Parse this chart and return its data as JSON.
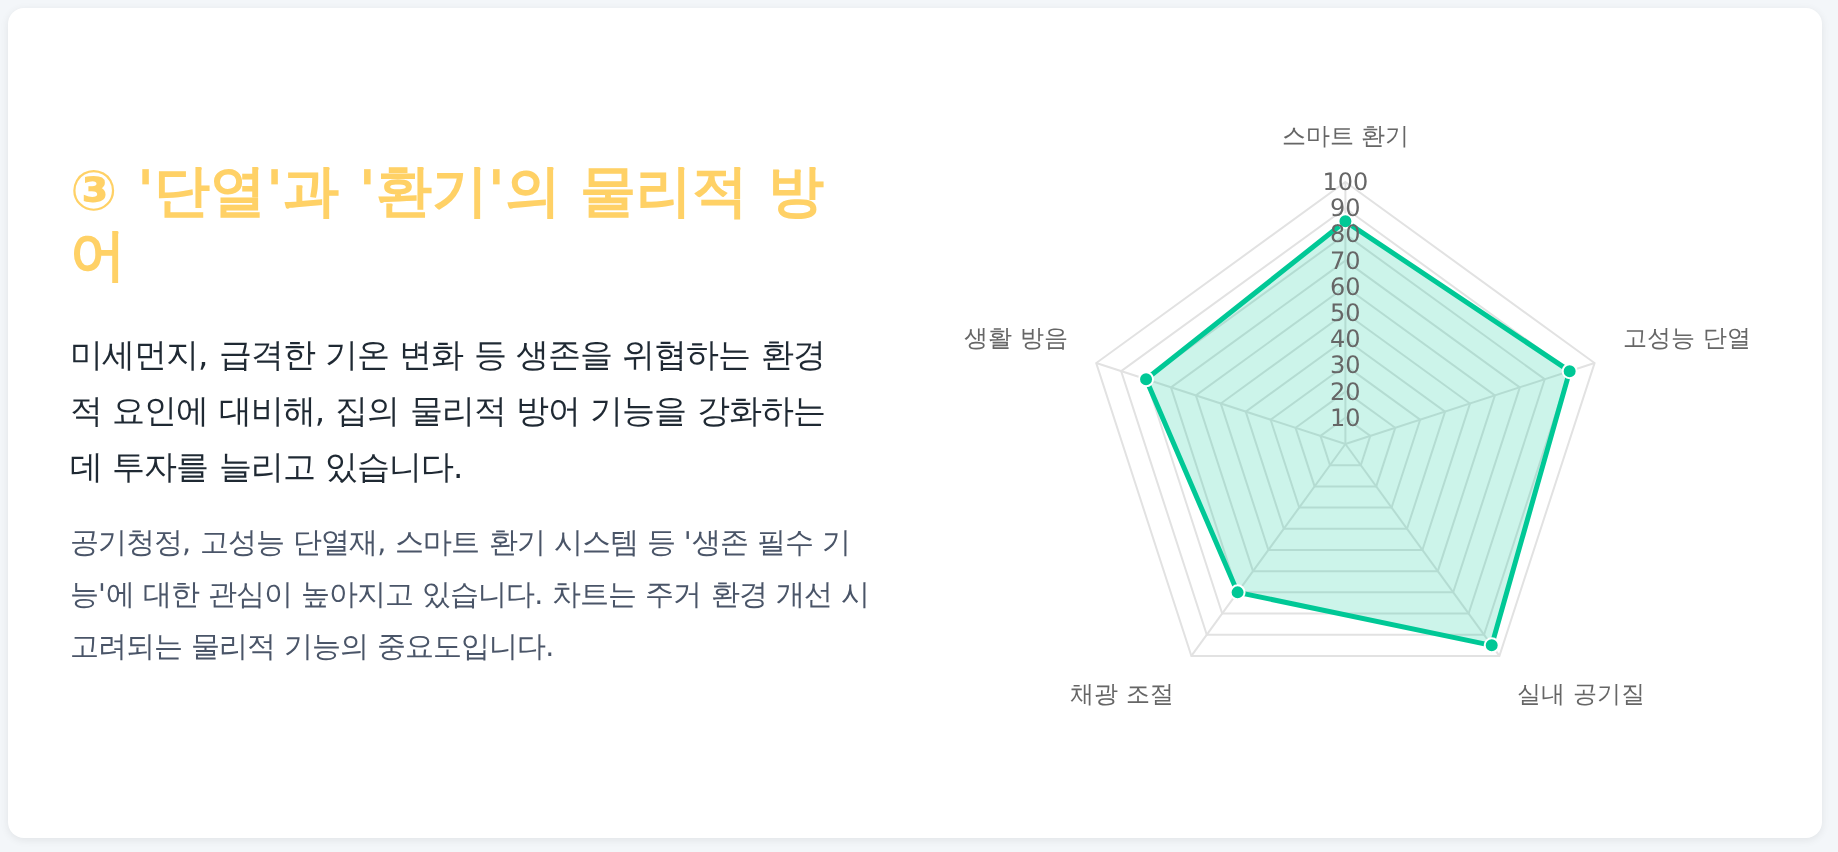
{
  "chart_data": {
    "type": "radar",
    "title": "③ '단열'과 '환기'의 물리적 방어",
    "subtitle": "미세먼지, 급격한 기온 변화 등 생존을 위협하는 환경적 요인에 대비해, 집의 물리적 방어 기능을 강화하는 데 투자를 늘리고 있습니다.",
    "annotations": [
      "공기청정, 고성능 단열재, 스마트 환기 시스템 등 '생존 필수 기능'에 대한 관심이 높아지고 있습니다. 차트는 주거 환경 개선 시 고려되는 물리적 기능의 중요도입니다."
    ],
    "categories": [
      "스마트 환기",
      "고성능 단열",
      "실내 공기질",
      "채광 조절",
      "생활 방음"
    ],
    "series": [
      {
        "color": "#00c896",
        "values": [
          85,
          90,
          95,
          70,
          80
        ]
      }
    ],
    "ylim": [
      0,
      100
    ],
    "yticks": [
      10,
      20,
      30,
      40,
      50,
      60,
      70,
      80,
      90,
      100
    ],
    "grid": true,
    "marker": "circle"
  }
}
